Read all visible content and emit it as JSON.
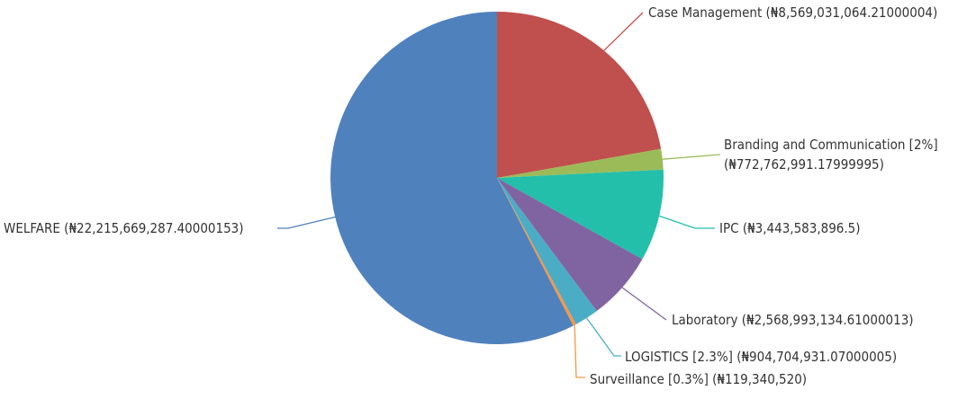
{
  "chart_data": {
    "type": "pie",
    "slices": [
      {
        "name": "Case Management",
        "value": 8569031064.21,
        "color": "#c0504d",
        "label": "Case Management (₦8,569,031,064.21000004)"
      },
      {
        "name": "Branding and Communication",
        "value": 772762991.18,
        "color": "#9bbb59",
        "label": "Branding and Communication [2%]",
        "label2": "(₦772,762,991.17999995)"
      },
      {
        "name": "IPC",
        "value": 3443583896.5,
        "color": "#23bfaa",
        "label": "IPC (₦3,443,583,896.5)"
      },
      {
        "name": "Laboratory",
        "value": 2568993134.61,
        "color": "#8064a2",
        "label": "Laboratory (₦2,568,993,134.61000013)"
      },
      {
        "name": "LOGISTICS",
        "value": 904704931.07,
        "color": "#4bacc6",
        "label": "LOGISTICS [2.3%] (₦904,704,931.07000005)"
      },
      {
        "name": "Surveillance",
        "value": 119340520,
        "color": "#f79646",
        "label": "Surveillance [0.3%] (₦119,340,520)"
      },
      {
        "name": "WELFARE",
        "value": 22215669287.4,
        "color": "#4f81bd",
        "label": "WELFARE (₦22,215,669,287.40000153)"
      }
    ],
    "start_angle": "12 o'clock",
    "direction": "clockwise"
  }
}
